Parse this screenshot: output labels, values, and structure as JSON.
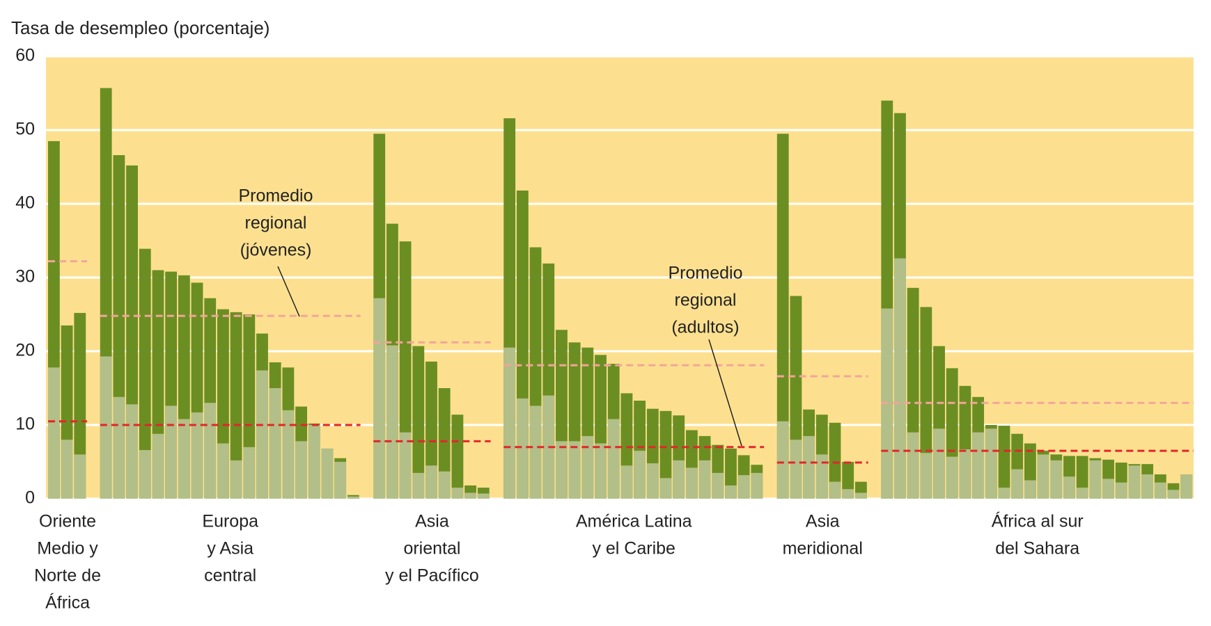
{
  "chart_data": {
    "type": "bar",
    "title": "Tasa de desempleo (porcentaje)",
    "ylim": [
      0,
      60
    ],
    "yticks": [
      0,
      10,
      20,
      30,
      40,
      50,
      60
    ],
    "grid": true,
    "colors": {
      "youth": "#6b8e23",
      "adult": "#b3bf88",
      "youth_average": "#f2a59a",
      "adult_average": "#e3262b"
    },
    "annotations": [
      {
        "lines": [
          "Promedio",
          "regional",
          "(jóvenes)"
        ]
      },
      {
        "lines": [
          "Promedio",
          "regional",
          "(adultos)"
        ]
      }
    ],
    "groups": [
      {
        "label": [
          "Oriente",
          "Medio y",
          "Norte de",
          "África"
        ],
        "youth": [
          48.5,
          23.5,
          25.2
        ],
        "adult": [
          17.8,
          8,
          6
        ],
        "youth_average": 32.2,
        "adult_average": 10.5
      },
      {
        "label": [
          "Europa",
          "y Asia",
          "central"
        ],
        "youth": [
          55.7,
          46.6,
          45.2,
          33.9,
          31,
          30.8,
          30.3,
          29.3,
          27.2,
          25.7,
          25.3,
          25,
          22.4,
          18.5,
          17.8,
          12.5,
          10.2,
          6.8,
          5.5,
          0.5
        ],
        "adult": [
          19.3,
          13.8,
          12.8,
          6.6,
          8.8,
          12.6,
          10.8,
          11.7,
          13,
          7.5,
          5.2,
          7,
          17.4,
          15,
          12,
          7.8,
          10,
          6.8,
          5,
          0.3
        ],
        "youth_average": 24.8,
        "adult_average": 10
      },
      {
        "label": [
          "Asia",
          "oriental",
          "y el Pacífico"
        ],
        "youth": [
          49.5,
          37.3,
          34.9,
          20.7,
          18.6,
          15,
          11.4,
          1.8,
          1.5
        ],
        "adult": [
          27.2,
          20.8,
          9,
          3.5,
          4.5,
          3.7,
          1.5,
          0.8,
          0.7
        ],
        "youth_average": 21.2,
        "adult_average": 7.8
      },
      {
        "label": [
          "América Latina",
          "y el Caribe"
        ],
        "youth": [
          51.6,
          41.8,
          34.1,
          31.9,
          22.9,
          21.2,
          20.5,
          19.5,
          18.3,
          14.3,
          13.3,
          12.2,
          11.9,
          11.3,
          9.3,
          8.5,
          7.3,
          6.8,
          5.9,
          4.6
        ],
        "adult": [
          20.5,
          13.6,
          12.6,
          14,
          7.8,
          7.8,
          8.5,
          7.5,
          10.8,
          4.5,
          6.5,
          4.8,
          2.8,
          5.2,
          4.2,
          5.2,
          3.5,
          1.8,
          3.2,
          3.5
        ],
        "youth_average": 18.1,
        "adult_average": 7
      },
      {
        "label": [
          "Asia",
          "meridional"
        ],
        "youth": [
          49.5,
          27.5,
          12.1,
          11.4,
          10.3,
          5,
          2.3
        ],
        "adult": [
          10.5,
          8,
          8.5,
          6,
          2.3,
          1.3,
          0.8
        ],
        "youth_average": 16.6,
        "adult_average": 4.9
      },
      {
        "label": [
          "África al sur",
          "del Sahara"
        ],
        "youth": [
          54,
          52.3,
          28.6,
          26,
          20.7,
          17.7,
          15.3,
          13.8,
          10,
          9.9,
          8.8,
          7.5,
          6.5,
          6,
          5.8,
          5.8,
          5.5,
          5.3,
          4.9,
          4.7,
          4.7,
          3.3,
          2.1,
          3.3
        ],
        "adult": [
          25.8,
          32.6,
          9,
          6.2,
          9.5,
          5.7,
          6.7,
          9,
          9.5,
          1.5,
          4,
          2.5,
          6,
          5.2,
          3,
          1.5,
          5.2,
          2.7,
          2.2,
          4.5,
          3.3,
          2.2,
          1.2,
          3.3
        ],
        "youth_average": 13,
        "adult_average": 6.5
      }
    ]
  }
}
